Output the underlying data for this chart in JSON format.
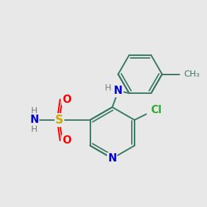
{
  "bg_color": "#e8e8e8",
  "bond_color": "#3a7a65",
  "bond_width": 1.5,
  "atom_colors": {
    "N": "#0000cc",
    "O": "#ff0000",
    "S": "#ccaa00",
    "Cl": "#33aa33",
    "C": "#3a7a65",
    "H": "#777777"
  },
  "font_size": 10,
  "font_size_small": 9
}
